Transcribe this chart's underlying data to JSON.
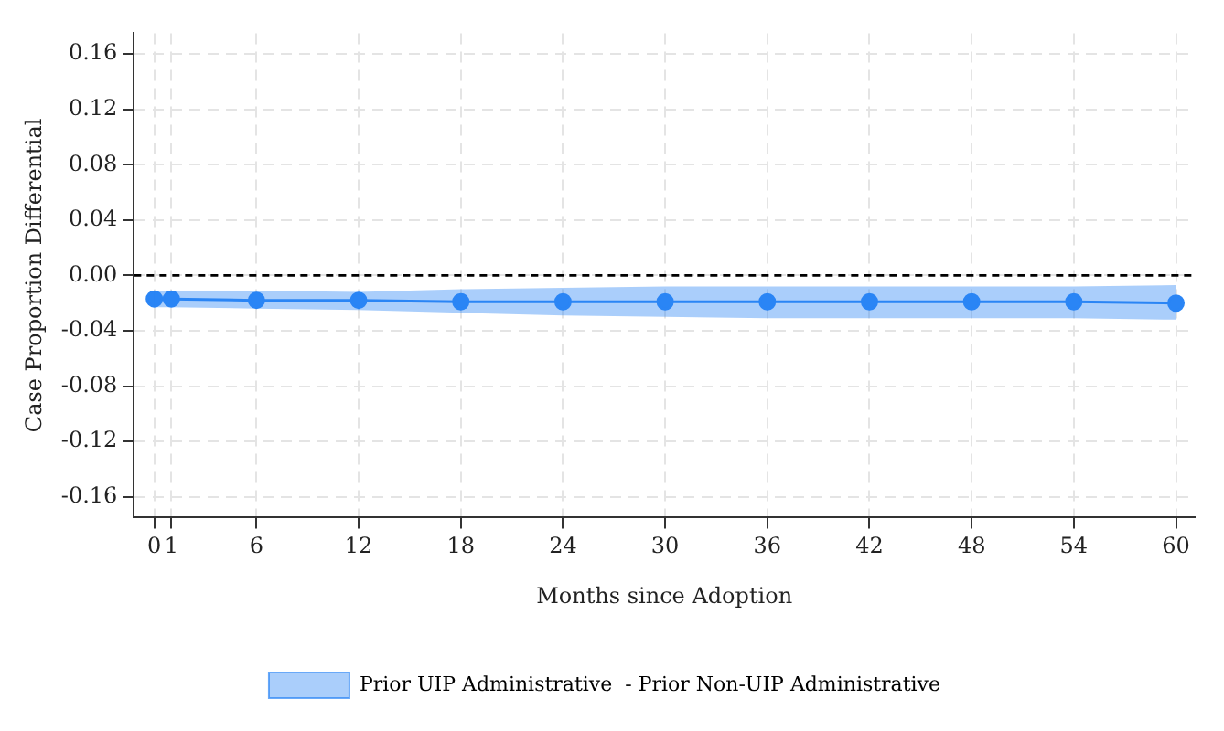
{
  "chart_data": {
    "type": "line",
    "xlabel": "Months since Adoption",
    "ylabel": "Case Proportion Differential",
    "x": [
      0,
      1,
      6,
      12,
      18,
      24,
      30,
      36,
      42,
      48,
      54,
      60
    ],
    "series": [
      {
        "name": "Prior UIP Administrative  - Prior Non-UIP Administrative",
        "color": "#2a85f5",
        "values": [
          -0.017,
          -0.017,
          -0.018,
          -0.018,
          -0.019,
          -0.019,
          -0.019,
          -0.019,
          -0.019,
          -0.019,
          -0.019,
          -0.02
        ],
        "lower": [
          -0.023,
          -0.023,
          -0.024,
          -0.025,
          -0.027,
          -0.029,
          -0.03,
          -0.031,
          -0.031,
          -0.031,
          -0.031,
          -0.032
        ],
        "upper": [
          -0.011,
          -0.011,
          -0.011,
          -0.012,
          -0.01,
          -0.009,
          -0.008,
          -0.008,
          -0.008,
          -0.008,
          -0.008,
          -0.007
        ]
      }
    ],
    "xlim": [
      -1.2,
      61.1
    ],
    "xticks": [
      0,
      1,
      6,
      12,
      18,
      24,
      30,
      36,
      42,
      48,
      54,
      60
    ],
    "ylim": [
      -0.175,
      0.175
    ],
    "yticks": [
      {
        "value": -0.16,
        "label": "-0.16"
      },
      {
        "value": -0.12,
        "label": "-0.12"
      },
      {
        "value": -0.08,
        "label": "-0.08"
      },
      {
        "value": -0.04,
        "label": "-0.04"
      },
      {
        "value": 0,
        "label": "0.00"
      },
      {
        "value": 0.04,
        "label": "0.04"
      },
      {
        "value": 0.08,
        "label": "0.08"
      },
      {
        "value": 0.12,
        "label": "0.12"
      },
      {
        "value": 0.16,
        "label": "0.16"
      }
    ],
    "ref_lines": [
      {
        "axis": "y",
        "value": 0,
        "color": "#000000",
        "line_style": "dashed"
      }
    ],
    "grid": true,
    "legend": "bottom",
    "marker": "circle",
    "line_style": "solid"
  }
}
